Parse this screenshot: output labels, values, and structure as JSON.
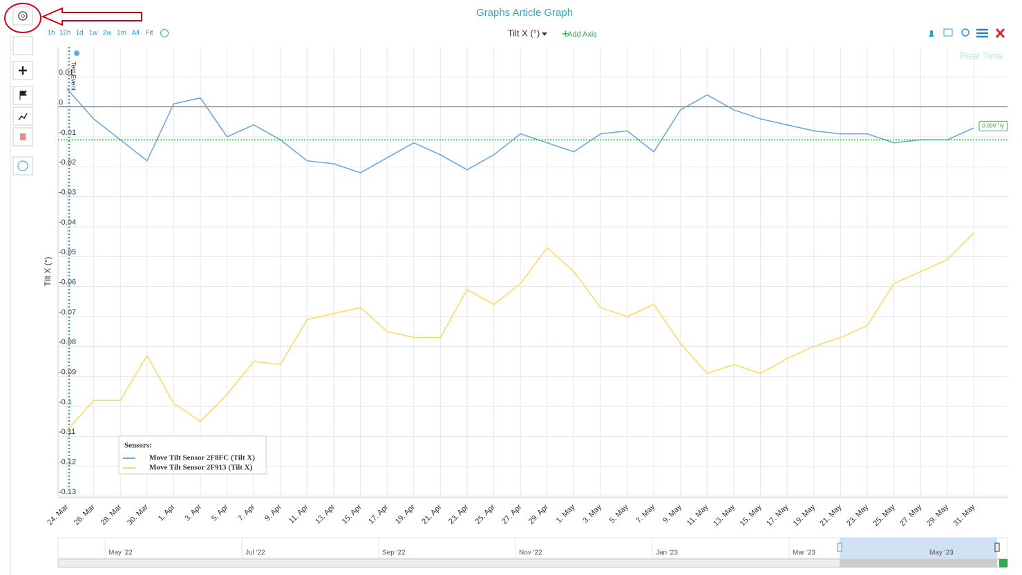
{
  "header": {
    "title": "Graphs Article Graph"
  },
  "toolbar": {
    "ranges": [
      "1h",
      "12h",
      "1d",
      "1w",
      "2w",
      "1m",
      "All",
      "Fit"
    ]
  },
  "axis_selector": "Tilt X (°)",
  "add_axis": "Add Axis",
  "real_time": "Real Time",
  "chart_data": {
    "type": "line",
    "y_label": "Tilt X (°)",
    "annotation": "Test Event",
    "trendline_value": -0.011,
    "trendline_label": "0.009 °/y",
    "legend_title": "Sensors:",
    "categories": [
      "24. Mar",
      "26. Mar",
      "28. Mar",
      "30. Mar",
      "1. Apr",
      "3. Apr",
      "5. Apr",
      "7. Apr",
      "9. Apr",
      "11. Apr",
      "13. Apr",
      "15. Apr",
      "17. Apr",
      "19. Apr",
      "21. Apr",
      "23. Apr",
      "25. Apr",
      "27. Apr",
      "29. Apr",
      "1. May",
      "3. May",
      "5. May",
      "7. May",
      "9. May",
      "11. May",
      "13. May",
      "15. May",
      "17. May",
      "19. May",
      "21. May",
      "23. May",
      "25. May",
      "27. May",
      "29. May",
      "31. May"
    ],
    "ylim": [
      -0.13,
      0.02
    ],
    "yticks": [
      0.01,
      0,
      -0.01,
      -0.02,
      -0.03,
      -0.04,
      -0.05,
      -0.06,
      -0.07,
      -0.08,
      -0.09,
      -0.1,
      -0.11,
      -0.12,
      -0.13
    ],
    "grid": true,
    "series": [
      {
        "name": "Move Tilt Sensor 2F8FC (Tilt X)",
        "color": "#6fa8dc",
        "values": [
          0.006,
          -0.004,
          -0.011,
          -0.018,
          0.001,
          0.003,
          -0.01,
          -0.006,
          -0.011,
          -0.018,
          -0.019,
          -0.022,
          -0.017,
          -0.012,
          -0.016,
          -0.021,
          -0.016,
          -0.009,
          -0.012,
          -0.015,
          -0.009,
          -0.008,
          -0.015,
          -0.001,
          0.004,
          -0.001,
          -0.004,
          -0.006,
          -0.008,
          -0.009,
          -0.009,
          -0.012,
          -0.011,
          -0.011,
          -0.007
        ]
      },
      {
        "name": "Move Tilt Sensor 2F913 (Tilt X)",
        "color": "#ffd966",
        "values": [
          -0.108,
          -0.098,
          -0.098,
          -0.083,
          -0.099,
          -0.105,
          -0.096,
          -0.085,
          -0.086,
          -0.071,
          -0.069,
          -0.067,
          -0.075,
          -0.077,
          -0.077,
          -0.061,
          -0.066,
          -0.059,
          -0.047,
          -0.055,
          -0.067,
          -0.07,
          -0.066,
          -0.079,
          -0.089,
          -0.086,
          -0.089,
          -0.084,
          -0.08,
          -0.077,
          -0.073,
          -0.059,
          -0.055,
          -0.051,
          -0.042
        ]
      }
    ]
  },
  "navigator": {
    "labels": [
      "May '22",
      "Jul '22",
      "Sep '22",
      "Nov '22",
      "Jan '23",
      "Mar '23",
      "May '23"
    ]
  }
}
